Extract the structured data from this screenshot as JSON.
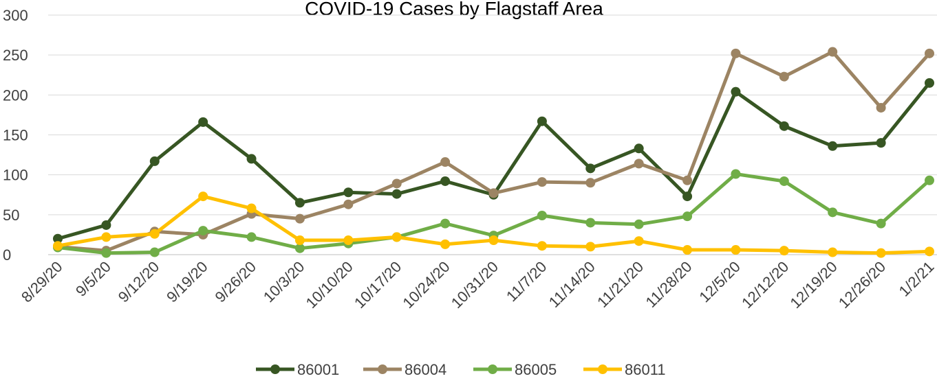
{
  "chart_data": {
    "type": "line",
    "title": "COVID-19 Cases by Flagstaff Area",
    "categories": [
      "8/29/20",
      "9/5/20",
      "9/12/20",
      "9/19/20",
      "9/26/20",
      "10/3/20",
      "10/10/20",
      "10/17/20",
      "10/24/20",
      "10/31/20",
      "11/7/20",
      "11/14/20",
      "11/21/20",
      "11/28/20",
      "12/5/20",
      "12/12/20",
      "12/19/20",
      "12/26/20",
      "1/2/21"
    ],
    "series": [
      {
        "name": "86001",
        "color": "#375623",
        "values": [
          20,
          37,
          117,
          166,
          120,
          65,
          78,
          76,
          92,
          75,
          167,
          108,
          133,
          73,
          204,
          161,
          136,
          140,
          215
        ]
      },
      {
        "name": "86004",
        "color": "#9c8463",
        "values": [
          10,
          5,
          29,
          25,
          51,
          45,
          63,
          89,
          116,
          77,
          91,
          90,
          114,
          93,
          252,
          223,
          254,
          184,
          252
        ]
      },
      {
        "name": "86005",
        "color": "#70ad47",
        "values": [
          9,
          2,
          3,
          30,
          22,
          8,
          14,
          22,
          39,
          24,
          49,
          40,
          38,
          48,
          101,
          92,
          53,
          39,
          93
        ]
      },
      {
        "name": "86011",
        "color": "#ffc000",
        "values": [
          11,
          22,
          26,
          73,
          58,
          18,
          18,
          22,
          13,
          18,
          11,
          10,
          17,
          6,
          6,
          5,
          3,
          2,
          4
        ]
      }
    ],
    "ylim": [
      0,
      300
    ],
    "yticks": [
      0,
      50,
      100,
      150,
      200,
      250,
      300
    ],
    "grid": true,
    "legend": "bottom"
  }
}
